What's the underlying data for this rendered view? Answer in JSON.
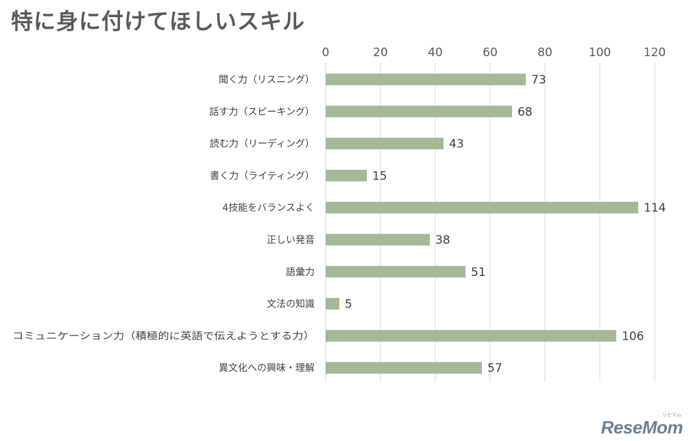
{
  "title": "特に身に付けてほしいスキル",
  "brand": {
    "logo": "ReseMom",
    "sub": "リセマム"
  },
  "colors": {
    "bar": "#a7b896",
    "grid": "#d9d9d9",
    "text": "#404040",
    "title": "#595959"
  },
  "chart_data": {
    "type": "bar",
    "orientation": "horizontal",
    "title": "特に身に付けてほしいスキル",
    "categories": [
      "聞く力（リスニング）",
      "話す力（スピーキング）",
      "読む力（リーディング）",
      "書く力（ライティング）",
      "4技能をバランスよく",
      "正しい発音",
      "語彙力",
      "文法の知識",
      "コミュニケーション力（積極的に英語で伝えようとする力）",
      "異文化への興味・理解"
    ],
    "values": [
      73,
      68,
      43,
      15,
      114,
      38,
      51,
      5,
      106,
      57
    ],
    "data_labels": [
      "73",
      "68",
      "43",
      "15",
      "114",
      "38",
      "51",
      "5",
      "106",
      "57"
    ],
    "xlim": [
      0,
      120
    ],
    "x_ticks": [
      0,
      20,
      40,
      60,
      80,
      100,
      120
    ],
    "x_tick_labels": [
      "0",
      "20",
      "40",
      "60",
      "80",
      "100",
      "120"
    ],
    "x_axis_position": "top",
    "grid": true,
    "legend": "none"
  }
}
